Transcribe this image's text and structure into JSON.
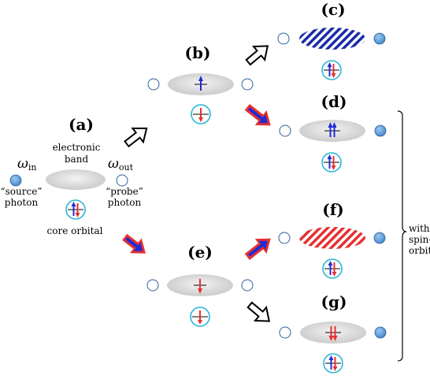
{
  "panels": {
    "a": {
      "label": "(a)",
      "band_title_1": "electronic",
      "band_title_2": "band",
      "omega_in": "ω",
      "omega_in_sub": "in",
      "omega_out": "ω",
      "omega_out_sub": "out",
      "source_1": "“source”",
      "source_2": "photon",
      "probe_1": "“probe”",
      "probe_2": "photon",
      "core": "core orbital"
    },
    "b": {
      "label": "(b)"
    },
    "c": {
      "label": "(c)"
    },
    "d": {
      "label": "(d)"
    },
    "e": {
      "label": "(e)"
    },
    "f": {
      "label": "(f)"
    },
    "g": {
      "label": "(g)"
    }
  },
  "brace_text": {
    "line1": "with",
    "line2": "spin-",
    "line3": "orbit"
  },
  "colors": {
    "band_gray": "#d8d8d8",
    "photon_blue": "#5b9bd5",
    "core_circle": "#29b6d4",
    "spin_up": "#1f2bd6",
    "spin_down": "#e53030"
  }
}
